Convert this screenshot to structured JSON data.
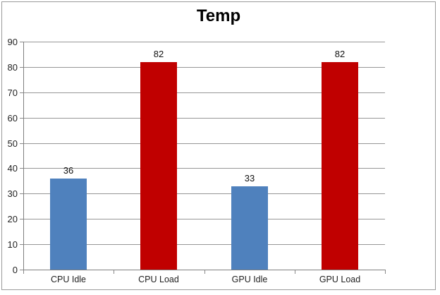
{
  "chart_data": {
    "type": "bar",
    "title": "Temp",
    "categories": [
      "CPU Idle",
      "CPU Load",
      "GPU Idle",
      "GPU Load"
    ],
    "values": [
      36,
      82,
      33,
      82
    ],
    "data_labels": [
      "36",
      "82",
      "33",
      "82"
    ],
    "bar_colors": [
      "#4F81BD",
      "#C00000",
      "#4F81BD",
      "#C00000"
    ],
    "xlabel": "",
    "ylabel": "",
    "ylim": [
      0,
      90
    ],
    "ytick_interval": 10,
    "ytick_labels": [
      "0",
      "10",
      "20",
      "30",
      "40",
      "50",
      "60",
      "70",
      "80",
      "90"
    ],
    "grid": true,
    "legend": "none"
  },
  "colors": {
    "idle_blue": "#4F81BD",
    "load_red": "#C00000",
    "gridline": "#969696",
    "axis": "#7F7F7F",
    "frame_border": "#9B9B9B",
    "label_text": "#1f1f1f",
    "title_text": "#000000",
    "background": "#ffffff"
  }
}
